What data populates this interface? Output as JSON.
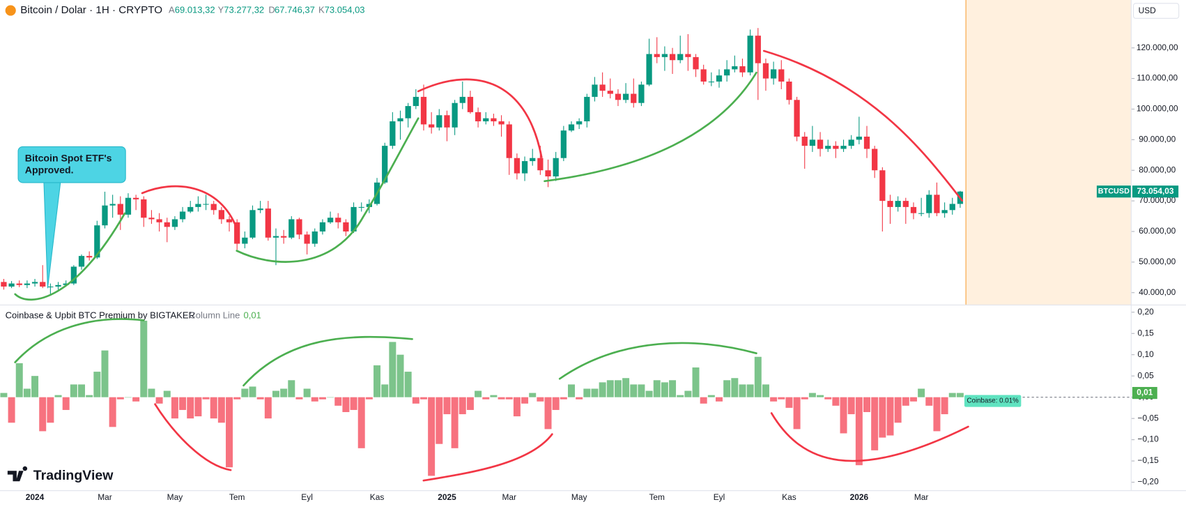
{
  "header": {
    "symbol": "Bitcoin / Dolar · 1H · CRYPTO",
    "ohlc": [
      {
        "key": "A",
        "value": "69.013,32"
      },
      {
        "key": "Y",
        "value": "73.277,32"
      },
      {
        "key": "D",
        "value": "67.746,37"
      },
      {
        "key": "K",
        "value": "73.054,03"
      }
    ]
  },
  "annotation": [
    "Bitcoin Spot ETF's",
    "Approved."
  ],
  "brand": "TradingView",
  "chart_data": [
    {
      "type": "candlestick",
      "unit_label": "USD",
      "symbol_label": "BTCUSD",
      "last_label": "73.054,03",
      "up_color": "#089981",
      "down_color": "#f23645",
      "grid": false,
      "ylim": [
        36086,
        135657
      ],
      "yticks": [
        {
          "value": 120000,
          "label": "120.000,00"
        },
        {
          "value": 110000,
          "label": "110.000,00"
        },
        {
          "value": 100000,
          "label": "100.000,00"
        },
        {
          "value": 90000,
          "label": "90.000,00"
        },
        {
          "value": 80000,
          "label": "80.000,00"
        },
        {
          "value": 70000,
          "label": "70.000,00"
        },
        {
          "value": 60000,
          "label": "60.000,00"
        },
        {
          "value": 50000,
          "label": "50.000,00"
        },
        {
          "value": 40000,
          "label": "40.000,00"
        }
      ],
      "categories": [
        null,
        null,
        null,
        null,
        "2024",
        null,
        null,
        null,
        null,
        null,
        null,
        null,
        null,
        "Mar",
        null,
        null,
        null,
        null,
        null,
        null,
        null,
        null,
        "May",
        null,
        null,
        null,
        null,
        null,
        null,
        null,
        "Tem",
        null,
        null,
        null,
        null,
        null,
        null,
        null,
        null,
        "Eyl",
        null,
        null,
        null,
        null,
        null,
        null,
        null,
        null,
        "Kas",
        null,
        null,
        null,
        null,
        null,
        null,
        null,
        null,
        "2025",
        null,
        null,
        null,
        null,
        null,
        null,
        null,
        "Mar",
        null,
        null,
        null,
        null,
        null,
        null,
        null,
        null,
        "May",
        null,
        null,
        null,
        null,
        null,
        null,
        null,
        null,
        null,
        "Tem",
        null,
        null,
        null,
        null,
        null,
        null,
        null,
        "Eyl",
        null,
        null,
        null,
        null,
        null,
        null,
        null,
        null,
        "Kas",
        null,
        null,
        null,
        null,
        null,
        null,
        null,
        null,
        "2026",
        null,
        null,
        null,
        null,
        null,
        null,
        null,
        "Mar",
        null,
        null,
        null,
        null,
        null
      ],
      "ohlc": [
        [
          43500,
          44500,
          41000,
          42000
        ],
        [
          42000,
          43800,
          41500,
          43000
        ],
        [
          43000,
          44000,
          41800,
          42500
        ],
        [
          42500,
          44000,
          41500,
          43000
        ],
        [
          43000,
          44500,
          42000,
          43500
        ],
        [
          43500,
          49000,
          41500,
          42000
        ],
        [
          42000,
          43000,
          39000,
          42000
        ],
        [
          42000,
          43500,
          41000,
          42500
        ],
        [
          42500,
          44000,
          42000,
          43000
        ],
        [
          43000,
          49000,
          42500,
          48500
        ],
        [
          48500,
          52500,
          47500,
          52000
        ],
        [
          52000,
          53500,
          50500,
          51500
        ],
        [
          51500,
          63500,
          51000,
          62000
        ],
        [
          62000,
          73000,
          61000,
          68500
        ],
        [
          68500,
          72000,
          64500,
          69000
        ],
        [
          69000,
          71500,
          60500,
          65500
        ],
        [
          65500,
          72500,
          64500,
          71000
        ],
        [
          71000,
          72000,
          67000,
          70500
        ],
        [
          70500,
          71500,
          61500,
          64500
        ],
        [
          64500,
          67000,
          62500,
          64000
        ],
        [
          64000,
          66000,
          60000,
          63000
        ],
        [
          63000,
          64500,
          56500,
          61500
        ],
        [
          61500,
          65000,
          60500,
          64000
        ],
        [
          64000,
          68000,
          63000,
          66500
        ],
        [
          66500,
          70000,
          66000,
          68000
        ],
        [
          68000,
          71500,
          66500,
          69000
        ],
        [
          69000,
          72000,
          67000,
          69000
        ],
        [
          69000,
          70000,
          65500,
          67000
        ],
        [
          67000,
          68000,
          62500,
          64000
        ],
        [
          64000,
          65000,
          60000,
          63000
        ],
        [
          63000,
          64000,
          54000,
          56000
        ],
        [
          56000,
          60000,
          54500,
          58000
        ],
        [
          58000,
          68500,
          57500,
          67000
        ],
        [
          67000,
          70000,
          66000,
          67500
        ],
        [
          67500,
          70000,
          57000,
          58000
        ],
        [
          58000,
          61000,
          49000,
          58500
        ],
        [
          58500,
          60500,
          56000,
          58000
        ],
        [
          58000,
          65000,
          57500,
          64000
        ],
        [
          64000,
          64500,
          57500,
          59000
        ],
        [
          59000,
          60000,
          52500,
          56000
        ],
        [
          56000,
          61000,
          55000,
          60000
        ],
        [
          60000,
          64000,
          59000,
          63000
        ],
        [
          63000,
          66500,
          62500,
          64500
        ],
        [
          64500,
          66000,
          61000,
          63000
        ],
        [
          63000,
          64000,
          58500,
          60000
        ],
        [
          60000,
          69500,
          59500,
          68000
        ],
        [
          68000,
          69500,
          66500,
          68000
        ],
        [
          68000,
          70500,
          66000,
          69000
        ],
        [
          69000,
          77500,
          68500,
          76000
        ],
        [
          76000,
          89000,
          75500,
          88000
        ],
        [
          88000,
          99000,
          87000,
          96000
        ],
        [
          96000,
          99500,
          90000,
          97000
        ],
        [
          97000,
          102000,
          94000,
          101000
        ],
        [
          101000,
          106500,
          100000,
          104000
        ],
        [
          104000,
          108000,
          93000,
          95000
        ],
        [
          95000,
          99000,
          92000,
          94000
        ],
        [
          94000,
          100000,
          93000,
          98000
        ],
        [
          98000,
          99500,
          89500,
          94000
        ],
        [
          94000,
          103000,
          91500,
          102000
        ],
        [
          102000,
          109000,
          100000,
          104000
        ],
        [
          104000,
          106000,
          98500,
          99000
        ],
        [
          99000,
          100500,
          94000,
          96000
        ],
        [
          96000,
          99000,
          95000,
          97000
        ],
        [
          97000,
          98500,
          94500,
          96000
        ],
        [
          96000,
          98000,
          91000,
          95000
        ],
        [
          95000,
          96000,
          78500,
          84000
        ],
        [
          84000,
          85500,
          77000,
          79000
        ],
        [
          79000,
          84500,
          76500,
          83000
        ],
        [
          83000,
          87000,
          81500,
          84000
        ],
        [
          84000,
          88000,
          78500,
          80000
        ],
        [
          80000,
          83500,
          74500,
          78000
        ],
        [
          78000,
          86000,
          76500,
          84000
        ],
        [
          84000,
          94500,
          83000,
          93000
        ],
        [
          93000,
          96000,
          92500,
          95000
        ],
        [
          95000,
          97000,
          93500,
          96000
        ],
        [
          96000,
          105000,
          94000,
          104000
        ],
        [
          104000,
          110500,
          102500,
          108000
        ],
        [
          108000,
          112000,
          104000,
          106000
        ],
        [
          106000,
          110000,
          103500,
          105000
        ],
        [
          105000,
          106500,
          101000,
          103000
        ],
        [
          103000,
          108500,
          102000,
          105000
        ],
        [
          105000,
          110000,
          100500,
          102000
        ],
        [
          102000,
          109000,
          101000,
          108000
        ],
        [
          108000,
          123000,
          107500,
          118000
        ],
        [
          118000,
          123500,
          115000,
          117000
        ],
        [
          117000,
          120500,
          112500,
          118000
        ],
        [
          118000,
          120000,
          111500,
          116000
        ],
        [
          116000,
          124000,
          115000,
          118000
        ],
        [
          118000,
          124500,
          112500,
          117000
        ],
        [
          117000,
          118000,
          110500,
          113000
        ],
        [
          113000,
          114500,
          108000,
          109000
        ],
        [
          109000,
          112000,
          107500,
          109000
        ],
        [
          109000,
          113000,
          107000,
          111000
        ],
        [
          111000,
          116000,
          109000,
          113000
        ],
        [
          113000,
          117500,
          112000,
          114000
        ],
        [
          114000,
          116500,
          110500,
          112000
        ],
        [
          112000,
          126000,
          111000,
          124000
        ],
        [
          124000,
          126500,
          103000,
          115000
        ],
        [
          115000,
          116500,
          106000,
          110000
        ],
        [
          110000,
          115500,
          108000,
          113000
        ],
        [
          113000,
          116000,
          106500,
          109000
        ],
        [
          109000,
          110000,
          101500,
          103000
        ],
        [
          103000,
          104000,
          89500,
          91000
        ],
        [
          91000,
          92500,
          80500,
          88000
        ],
        [
          88000,
          94500,
          86000,
          90000
        ],
        [
          90000,
          92500,
          84500,
          87000
        ],
        [
          87000,
          90000,
          86000,
          88000
        ],
        [
          88000,
          89500,
          84000,
          87000
        ],
        [
          87000,
          90000,
          86000,
          88000
        ],
        [
          88000,
          91500,
          87000,
          90000
        ],
        [
          90000,
          97500,
          88500,
          91000
        ],
        [
          91000,
          94500,
          84000,
          87000
        ],
        [
          87000,
          88000,
          77500,
          80000
        ],
        [
          80000,
          81000,
          60000,
          70000
        ],
        [
          70000,
          72000,
          62500,
          68000
        ],
        [
          68000,
          71500,
          66500,
          70000
        ],
        [
          70000,
          71000,
          62500,
          68000
        ],
        [
          68000,
          69500,
          64000,
          66000
        ],
        [
          66000,
          71000,
          65000,
          66000
        ],
        [
          66000,
          73500,
          64500,
          72000
        ],
        [
          72000,
          76000,
          65000,
          66000
        ],
        [
          66000,
          69500,
          64500,
          67000
        ],
        [
          67000,
          71000,
          65500,
          69013.32
        ],
        [
          69013.32,
          73277.32,
          67746.37,
          73054.03
        ]
      ]
    },
    {
      "type": "bar",
      "title": "Coinbase & Upbit BTC Premium by BIGTAKER",
      "subtitle": "Column Line",
      "last_value_label": "0,01",
      "tag": "Coinbase: 0.01%",
      "up_color": "#7cc48b",
      "down_color": "#f7727f",
      "ylim": [
        -0.219,
        0.216
      ],
      "yticks": [
        {
          "value": 0.2,
          "label": "0,20"
        },
        {
          "value": 0.15,
          "label": "0,15"
        },
        {
          "value": 0.1,
          "label": "0,10"
        },
        {
          "value": 0.05,
          "label": "0,05"
        },
        {
          "value": 0,
          "label": "0,00"
        },
        {
          "value": -0.05,
          "label": "−0,05"
        },
        {
          "value": -0.1,
          "label": "−0,10"
        },
        {
          "value": -0.15,
          "label": "−0,15"
        },
        {
          "value": -0.2,
          "label": "−0,20"
        }
      ],
      "values": [
        0.01,
        -0.06,
        0.08,
        0.02,
        0.05,
        -0.08,
        -0.06,
        0.005,
        -0.03,
        0.03,
        0.03,
        0.005,
        0.06,
        0.11,
        -0.07,
        -0.005,
        0.0,
        -0.01,
        0.18,
        0.02,
        -0.015,
        0.015,
        -0.05,
        -0.03,
        -0.05,
        -0.045,
        -0.005,
        -0.05,
        -0.06,
        -0.165,
        -0.005,
        0.02,
        0.025,
        -0.005,
        -0.05,
        0.015,
        0.02,
        0.04,
        -0.005,
        0.02,
        -0.01,
        -0.005,
        0.0,
        -0.02,
        -0.035,
        -0.03,
        -0.12,
        -0.005,
        0.075,
        0.03,
        0.13,
        0.1,
        0.06,
        -0.015,
        -0.005,
        -0.185,
        -0.11,
        -0.04,
        -0.12,
        -0.04,
        -0.03,
        0.015,
        -0.005,
        0.005,
        -0.005,
        -0.005,
        -0.045,
        -0.015,
        0.01,
        -0.01,
        -0.075,
        -0.03,
        -0.005,
        0.03,
        -0.005,
        0.02,
        0.02,
        0.035,
        0.04,
        0.04,
        0.045,
        0.03,
        0.03,
        0.015,
        0.04,
        0.035,
        0.04,
        0.005,
        0.015,
        0.07,
        -0.015,
        0.005,
        -0.01,
        0.04,
        0.045,
        0.03,
        0.03,
        0.095,
        0.03,
        -0.01,
        -0.005,
        -0.025,
        -0.075,
        -0.005,
        0.01,
        0.005,
        -0.005,
        -0.02,
        -0.085,
        -0.04,
        -0.16,
        -0.035,
        -0.125,
        -0.095,
        -0.09,
        -0.06,
        -0.02,
        -0.01,
        0.02,
        -0.02,
        -0.08,
        -0.04,
        0.01,
        0.01
      ]
    }
  ]
}
